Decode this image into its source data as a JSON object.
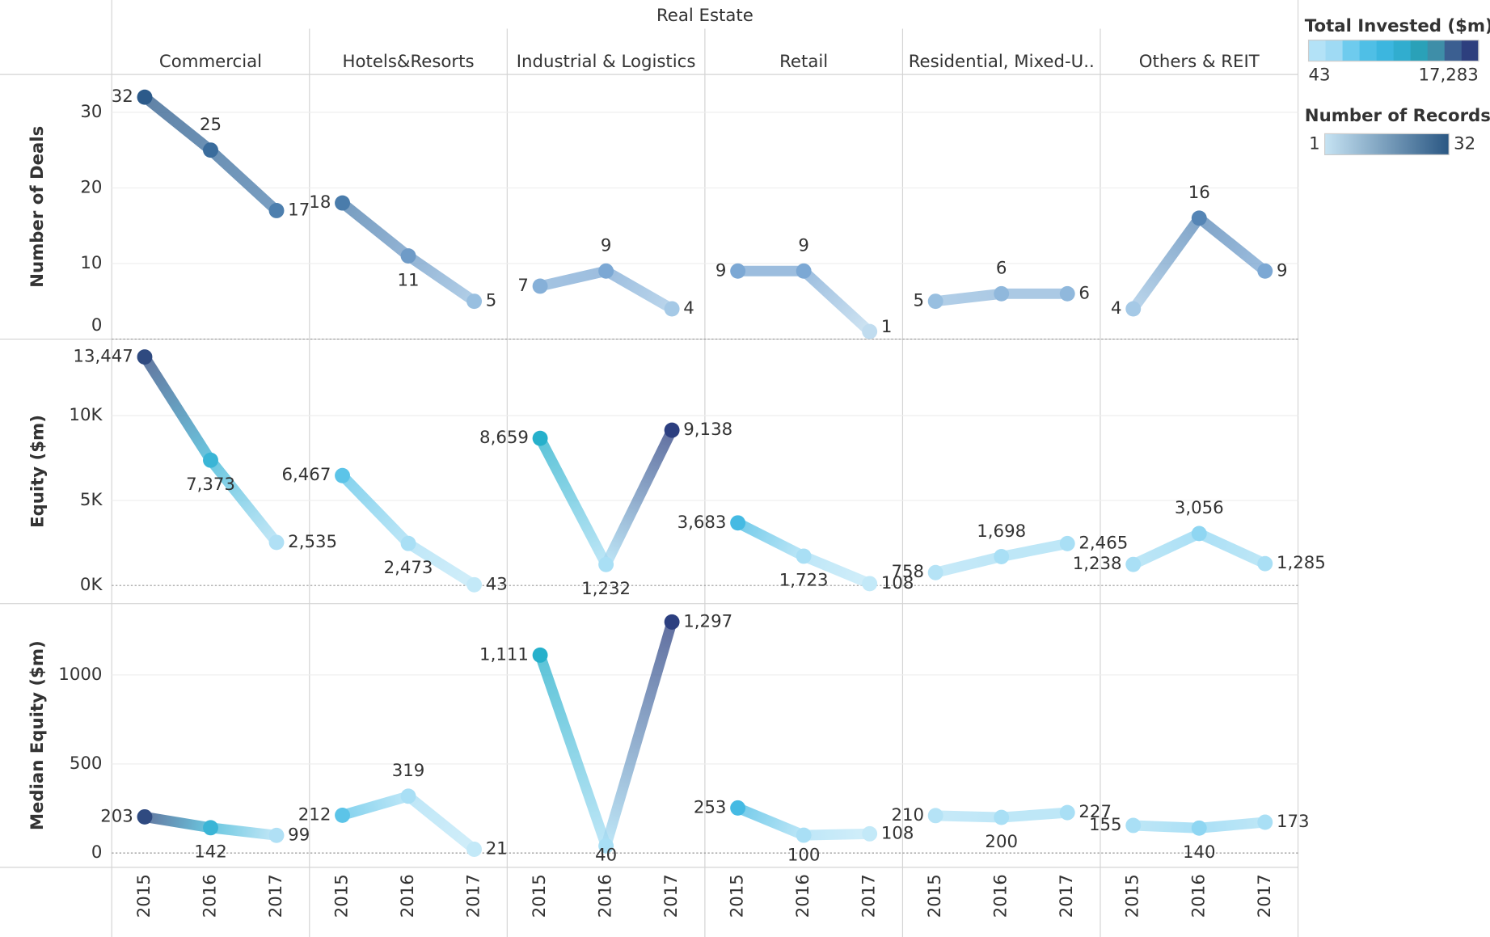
{
  "chart_data": {
    "type": "line",
    "header": "Real Estate",
    "columns": [
      "Commercial",
      "Hotels&Resorts",
      "Industrial & Logistics",
      "Retail",
      "Residential, Mixed-U..",
      "Others & REIT"
    ],
    "x": [
      2015,
      2016,
      2017
    ],
    "rows": [
      {
        "label": "Number of Deals",
        "ylim": [
          0,
          35
        ],
        "yticks": [
          0,
          10,
          20,
          30
        ],
        "values": [
          [
            32,
            25,
            17
          ],
          [
            18,
            11,
            5
          ],
          [
            7,
            9,
            4
          ],
          [
            9,
            9,
            1
          ],
          [
            5,
            6,
            6
          ],
          [
            4,
            16,
            9
          ]
        ],
        "colors": [
          [
            "#2c5a8a",
            "#3a6c9c",
            "#4d7fae"
          ],
          [
            "#4a7cab",
            "#6f9bc7",
            "#98bfe0"
          ],
          [
            "#86b0d8",
            "#7ca8d4",
            "#a5c9e6"
          ],
          [
            "#7ca8d4",
            "#7ca8d4",
            "#c0dcef"
          ],
          [
            "#98bfe0",
            "#90b8dc",
            "#90b8dc"
          ],
          [
            "#a5c9e6",
            "#5585b5",
            "#7ca8d4"
          ]
        ]
      },
      {
        "label": "Equity ($m)",
        "ylim": [
          -1070,
          14500
        ],
        "yticks": [
          {
            "value": 0,
            "label": "0K"
          },
          {
            "value": 5000,
            "label": "5K"
          },
          {
            "value": 10000,
            "label": "10K"
          }
        ],
        "values": [
          [
            13447,
            7373,
            2535
          ],
          [
            6467,
            2473,
            43
          ],
          [
            8659,
            1232,
            9138
          ],
          [
            3683,
            1723,
            108
          ],
          [
            758,
            1698,
            2465
          ],
          [
            1238,
            3056,
            1285
          ]
        ],
        "value_labels": [
          [
            "13,447",
            "7,373",
            "2,535"
          ],
          [
            "6,467",
            "2,473",
            "43"
          ],
          [
            "8,659",
            "1,232",
            "9,138"
          ],
          [
            "3,683",
            "1,723",
            "108"
          ],
          [
            "758",
            "1,698",
            "2,465"
          ],
          [
            "1,238",
            "3,056",
            "1,285"
          ]
        ],
        "colors": [
          [
            "#2f4a80",
            "#3ab5d6",
            "#b0e0f5"
          ],
          [
            "#5cc4e8",
            "#a9dff5",
            "#c3e9f8"
          ],
          [
            "#26b0cb",
            "#a9dff5",
            "#2c3f80"
          ],
          [
            "#45bae3",
            "#a9dff5",
            "#c3e9f8"
          ],
          [
            "#b5e3f6",
            "#a9dff5",
            "#a9dff5"
          ],
          [
            "#a9dff5",
            "#8fd6f2",
            "#a9dff5"
          ]
        ]
      },
      {
        "label": "Median Equity ($m)",
        "ylim": [
          -80,
          1400
        ],
        "yticks": [
          0,
          500,
          1000
        ],
        "values": [
          [
            203,
            142,
            99
          ],
          [
            212,
            319,
            21
          ],
          [
            1111,
            40,
            1297
          ],
          [
            253,
            100,
            108
          ],
          [
            210,
            200,
            227
          ],
          [
            155,
            140,
            173
          ]
        ],
        "value_labels": [
          [
            "203",
            "142",
            "99"
          ],
          [
            "212",
            "319",
            "21"
          ],
          [
            "1,111",
            "40",
            "1,297"
          ],
          [
            "253",
            "100",
            "108"
          ],
          [
            "210",
            "200",
            "227"
          ],
          [
            "155",
            "140",
            "173"
          ]
        ],
        "colors": [
          [
            "#2f4a80",
            "#3ab5d6",
            "#b0e0f5"
          ],
          [
            "#5cc4e8",
            "#a9dff5",
            "#c3e9f8"
          ],
          [
            "#26b0cb",
            "#a9dff5",
            "#2c3f80"
          ],
          [
            "#45bae3",
            "#a9dff5",
            "#c3e9f8"
          ],
          [
            "#b5e3f6",
            "#a9dff5",
            "#a9dff5"
          ],
          [
            "#a9dff5",
            "#8fd6f2",
            "#a9dff5"
          ]
        ]
      }
    ],
    "legends": [
      {
        "title": "Total Invested ($m)",
        "range": [
          43,
          {
            "value": 17283,
            "label": "17,283"
          }
        ],
        "colors": [
          "#b3e2f7",
          "#9fdaf4",
          "#6ecbee",
          "#4fbfe6",
          "#3cb6df",
          "#31adcf",
          "#2aa1b8",
          "#3e8ea8",
          "#3b5f91",
          "#2d3f7e"
        ]
      },
      {
        "title": "Number of Records",
        "range": [
          1,
          32
        ],
        "colors": [
          "#c6e3f3",
          "#2a5783"
        ]
      }
    ]
  }
}
